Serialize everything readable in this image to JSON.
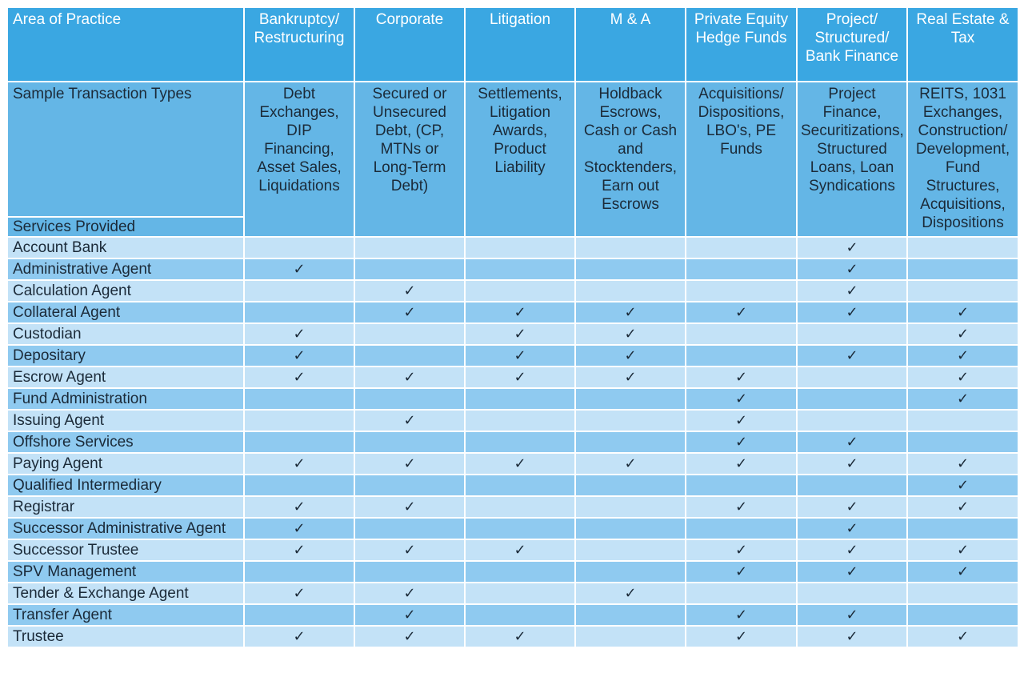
{
  "check_symbol": "✓",
  "header": {
    "area_label": "Area of Practice",
    "columns": [
      {
        "id": "bankruptcy",
        "label": "Bankruptcy/\nRestructuring"
      },
      {
        "id": "corporate",
        "label": "Corporate"
      },
      {
        "id": "litigation",
        "label": "Litigation"
      },
      {
        "id": "ma",
        "label": "M & A"
      },
      {
        "id": "pe",
        "label": "Private Equity\nHedge Funds"
      },
      {
        "id": "project",
        "label": "Project/\nStructured/\nBank Finance"
      },
      {
        "id": "realestate",
        "label": "Real Estate &\nTax"
      }
    ]
  },
  "sample": {
    "label": "Sample Transaction Types",
    "services_label": "Services Provided",
    "values": [
      "Debt\nExchanges,\nDIP\nFinancing,\nAsset Sales,\nLiquidations",
      "Secured or\nUnsecured\nDebt, (CP,\nMTNs or\nLong-Term\nDebt)",
      "Settlements,\nLitigation\nAwards,\nProduct\nLiability",
      "Holdback\nEscrows,\nCash or Cash\nand\nStocktenders,\nEarn out\nEscrows",
      "Acquisitions/\nDispositions,\nLBO's, PE\nFunds",
      "Project\nFinance,\nSecuritizations,\nStructured\nLoans, Loan\nSyndications",
      "REITS, 1031\nExchanges,\nConstruction/\nDevelopment,\nFund\nStructures,\nAcquisitions,\nDispositions"
    ]
  },
  "services": [
    {
      "name": "Account Bank",
      "checks": [
        false,
        false,
        false,
        false,
        false,
        true,
        false
      ]
    },
    {
      "name": "Administrative Agent",
      "checks": [
        true,
        false,
        false,
        false,
        false,
        true,
        false
      ]
    },
    {
      "name": "Calculation Agent",
      "checks": [
        false,
        true,
        false,
        false,
        false,
        true,
        false
      ]
    },
    {
      "name": "Collateral Agent",
      "checks": [
        false,
        true,
        true,
        true,
        true,
        true,
        true
      ]
    },
    {
      "name": "Custodian",
      "checks": [
        true,
        false,
        true,
        true,
        false,
        false,
        true
      ]
    },
    {
      "name": "Depositary",
      "checks": [
        true,
        false,
        true,
        true,
        false,
        true,
        true
      ]
    },
    {
      "name": "Escrow Agent",
      "checks": [
        true,
        true,
        true,
        true,
        true,
        false,
        true
      ]
    },
    {
      "name": "Fund Administration",
      "checks": [
        false,
        false,
        false,
        false,
        true,
        false,
        true
      ]
    },
    {
      "name": "Issuing Agent",
      "checks": [
        false,
        true,
        false,
        false,
        true,
        false,
        false
      ]
    },
    {
      "name": "Offshore Services",
      "checks": [
        false,
        false,
        false,
        false,
        true,
        true,
        false
      ]
    },
    {
      "name": "Paying Agent",
      "checks": [
        true,
        true,
        true,
        true,
        true,
        true,
        true
      ]
    },
    {
      "name": "Qualified Intermediary",
      "checks": [
        false,
        false,
        false,
        false,
        false,
        false,
        true
      ]
    },
    {
      "name": "Registrar",
      "checks": [
        true,
        true,
        false,
        false,
        true,
        true,
        true
      ]
    },
    {
      "name": "Successor Administrative Agent",
      "checks": [
        true,
        false,
        false,
        false,
        false,
        true,
        false
      ]
    },
    {
      "name": "Successor Trustee",
      "checks": [
        true,
        true,
        true,
        false,
        true,
        true,
        true
      ]
    },
    {
      "name": "SPV Management",
      "checks": [
        false,
        false,
        false,
        false,
        true,
        true,
        true
      ]
    },
    {
      "name": "Tender & Exchange Agent",
      "checks": [
        true,
        true,
        false,
        true,
        false,
        false,
        false
      ]
    },
    {
      "name": "Transfer Agent",
      "checks": [
        false,
        true,
        false,
        false,
        true,
        true,
        false
      ]
    },
    {
      "name": "Trustee",
      "checks": [
        true,
        true,
        true,
        false,
        true,
        true,
        true
      ]
    }
  ]
}
